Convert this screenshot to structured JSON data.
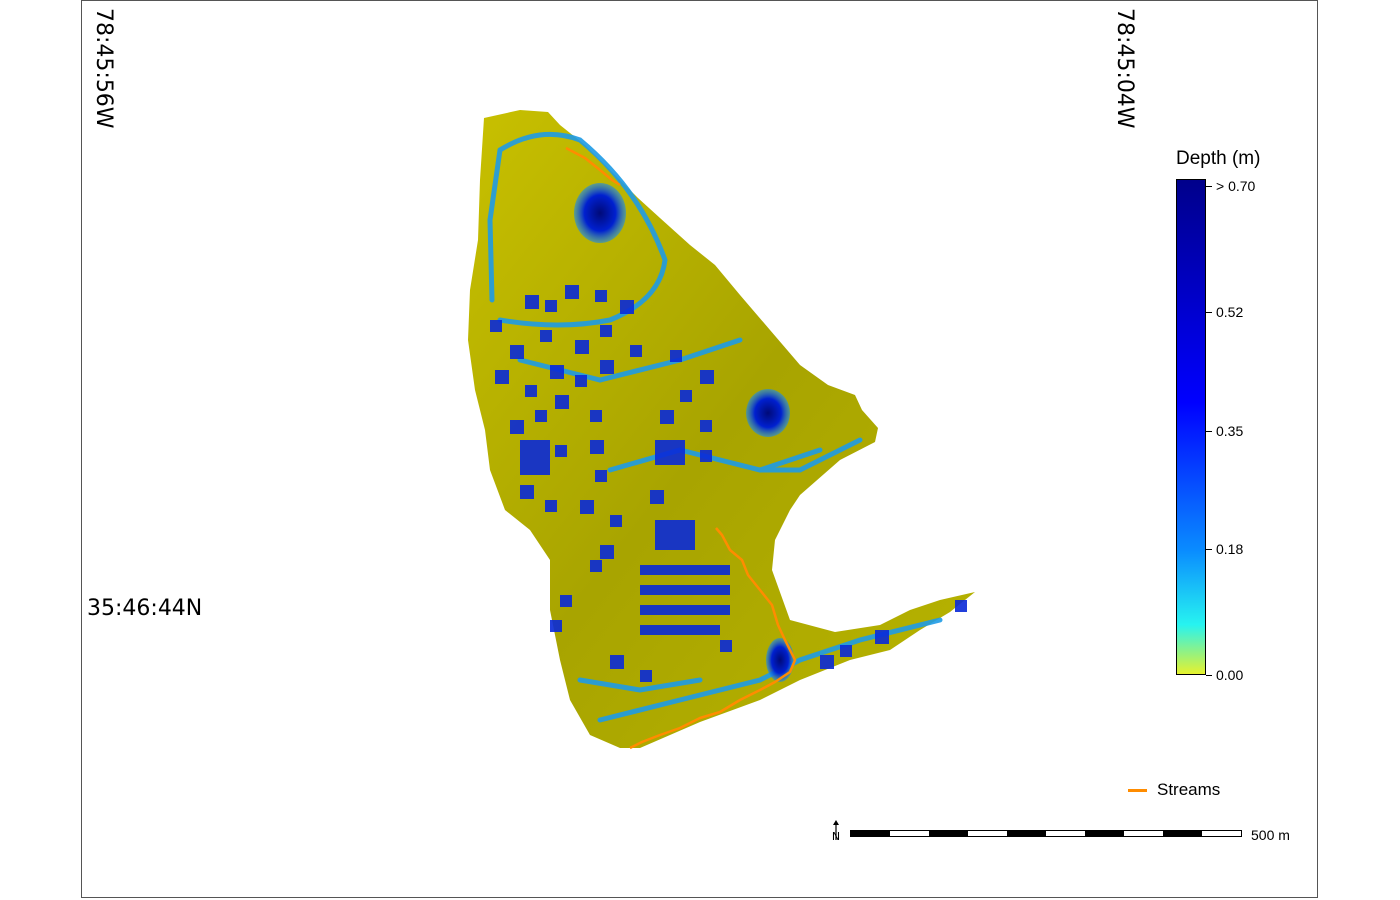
{
  "coordinates": {
    "lon_left": "78:45:56W",
    "lon_right": "78:45:04W",
    "lat": "35:46:44N"
  },
  "legend": {
    "title": "Depth (m)",
    "scale": "linear",
    "gradient_colors": [
      "#e6f22e",
      "#27f3f0",
      "#0a8cff",
      "#0000ff",
      "#00008b"
    ],
    "labels": [
      {
        "value": 0.7,
        "text": "> 0.70"
      },
      {
        "value": 0.52,
        "text": "0.52"
      },
      {
        "value": 0.35,
        "text": "0.35"
      },
      {
        "value": 0.18,
        "text": "0.18"
      },
      {
        "value": 0.0,
        "text": "0.00"
      }
    ]
  },
  "streams_legend": {
    "label": "Streams",
    "color": "#ff8c00"
  },
  "scalebar": {
    "label": "500 m",
    "segments": 10
  },
  "north_arrow": {
    "letter": "N"
  },
  "map_colors": {
    "terrain": "#b4b000",
    "shallow_water": "#1e9be6",
    "deep_water": "#0019c8",
    "stream": "#ff8c00"
  }
}
